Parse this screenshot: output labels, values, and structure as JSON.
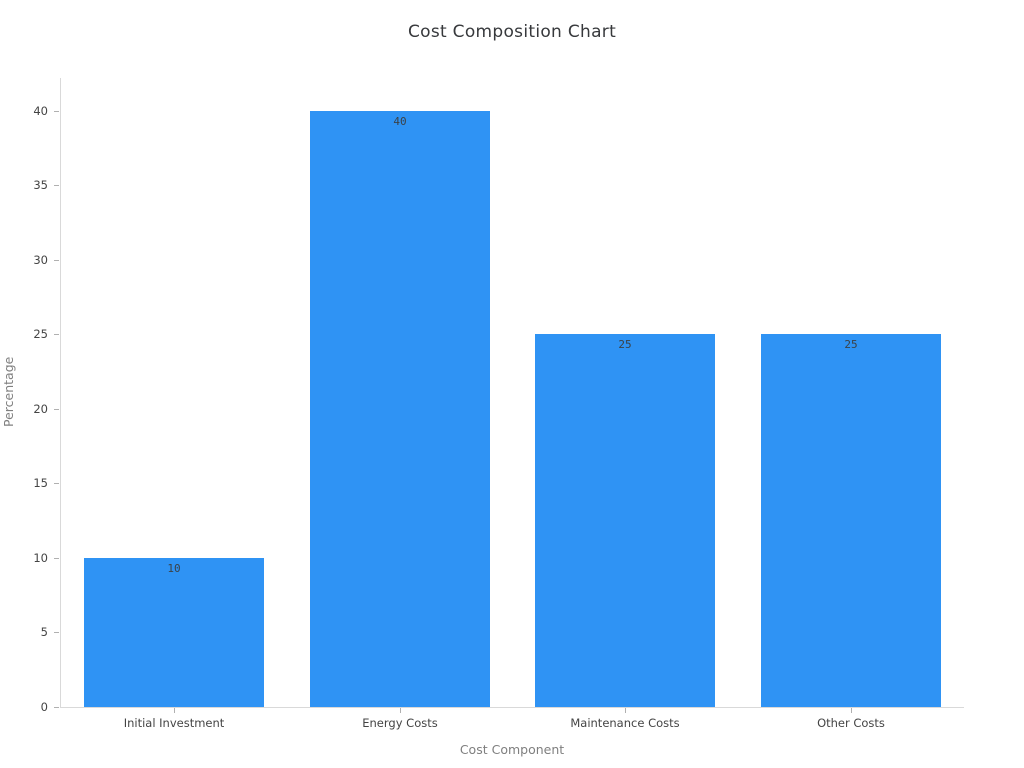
{
  "chart_data": {
    "type": "bar",
    "title": "Cost Composition Chart",
    "xlabel": "Cost Component",
    "ylabel": "Percentage",
    "categories": [
      "Initial Investment",
      "Energy Costs",
      "Maintenance Costs",
      "Other Costs"
    ],
    "values": [
      10,
      40,
      25,
      25
    ],
    "bar_value_labels": [
      "10",
      "40",
      "25",
      "25"
    ],
    "yticks": [
      0,
      5,
      10,
      15,
      20,
      25,
      30,
      35,
      40
    ],
    "ylim": [
      0,
      42.2
    ],
    "grid": false,
    "legend": "none",
    "colors": {
      "bar_fill": "#2f93f4",
      "axis_line": "#d9d9d9",
      "tick_mark": "#b0b0b0",
      "tick_label": "#444444",
      "axis_title": "#7f7f7f",
      "chart_title": "#37393c",
      "bar_value_label": "#3b4248",
      "background": "#ffffff"
    }
  }
}
